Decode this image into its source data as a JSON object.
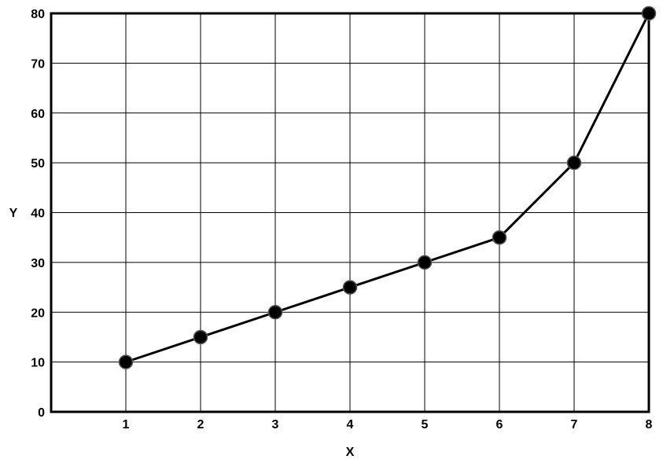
{
  "chart_data": {
    "type": "line",
    "title": "",
    "xlabel": "X",
    "ylabel": "Y",
    "xlim": [
      0,
      8
    ],
    "ylim": [
      0,
      80
    ],
    "x_ticks": [
      1,
      2,
      3,
      4,
      5,
      6,
      7,
      8
    ],
    "y_ticks": [
      0,
      10,
      20,
      30,
      40,
      50,
      60,
      70,
      80
    ],
    "grid": true,
    "legend": "none",
    "series": [
      {
        "x": [
          1,
          2,
          3,
          4,
          5,
          6,
          7,
          8
        ],
        "y": [
          10,
          15,
          20,
          25,
          30,
          35,
          50,
          80
        ],
        "color": "#000000",
        "marker": "circle"
      }
    ]
  }
}
